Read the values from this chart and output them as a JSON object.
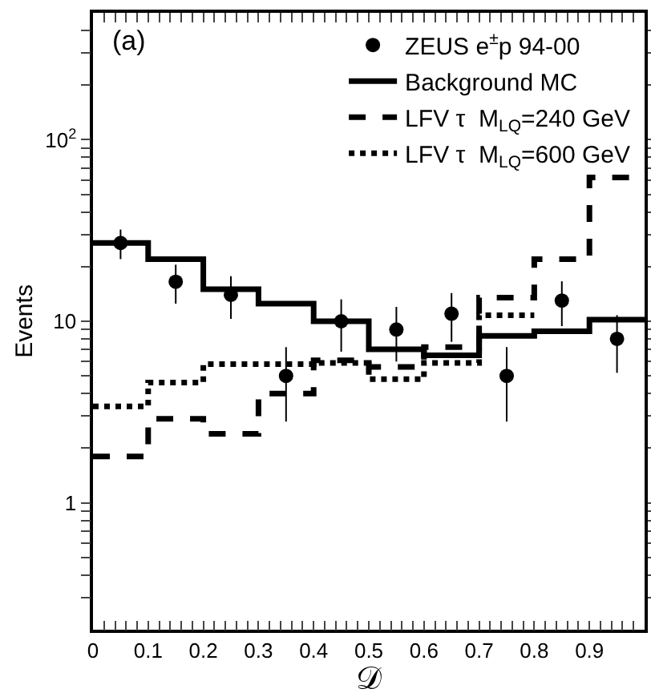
{
  "chart_data": {
    "type": "step",
    "xlabel": "𝒟",
    "ylabel": "Events",
    "annotations": [
      "(a)"
    ],
    "xlim": [
      0,
      1
    ],
    "ylim": [
      0.2,
      500
    ],
    "log": "y",
    "legend": "top right",
    "grid": false,
    "xticks": [
      0,
      0.1,
      0.2,
      0.3,
      0.4,
      0.5,
      0.6,
      0.7,
      0.8,
      0.9,
      {
        "value": 0.02,
        "label": null
      },
      {
        "value": 0.04,
        "label": null
      },
      {
        "value": 0.06,
        "label": null
      },
      {
        "value": 0.08,
        "label": null
      },
      {
        "value": 0.12,
        "label": null
      },
      {
        "value": 0.14,
        "label": null
      },
      {
        "value": 0.16,
        "label": null
      },
      {
        "value": 0.18,
        "label": null
      },
      {
        "value": 0.22,
        "label": null
      },
      {
        "value": 0.24,
        "label": null
      },
      {
        "value": 0.26,
        "label": null
      },
      {
        "value": 0.28,
        "label": null
      },
      {
        "value": 0.32,
        "label": null
      },
      {
        "value": 0.34,
        "label": null
      },
      {
        "value": 0.36,
        "label": null
      },
      {
        "value": 0.38,
        "label": null
      },
      {
        "value": 0.42,
        "label": null
      },
      {
        "value": 0.44,
        "label": null
      },
      {
        "value": 0.46,
        "label": null
      },
      {
        "value": 0.48,
        "label": null
      },
      {
        "value": 0.52,
        "label": null
      },
      {
        "value": 0.54,
        "label": null
      },
      {
        "value": 0.56,
        "label": null
      },
      {
        "value": 0.58,
        "label": null
      },
      {
        "value": 0.62,
        "label": null
      },
      {
        "value": 0.64,
        "label": null
      },
      {
        "value": 0.66,
        "label": null
      },
      {
        "value": 0.68,
        "label": null
      },
      {
        "value": 0.72,
        "label": null
      },
      {
        "value": 0.74,
        "label": null
      },
      {
        "value": 0.76,
        "label": null
      },
      {
        "value": 0.78,
        "label": null
      },
      {
        "value": 0.82,
        "label": null
      },
      {
        "value": 0.84,
        "label": null
      },
      {
        "value": 0.86,
        "label": null
      },
      {
        "value": 0.88,
        "label": null
      },
      {
        "value": 0.92,
        "label": null
      },
      {
        "value": 0.94,
        "label": null
      },
      {
        "value": 0.96,
        "label": null
      },
      {
        "value": 0.98,
        "label": null
      }
    ],
    "yticks": [
      1,
      10,
      {
        "value": 100,
        "label": "10$^{2}$"
      },
      {
        "value": 0.3,
        "label": null
      },
      {
        "value": 0.4,
        "label": null
      },
      {
        "value": 0.5,
        "label": null
      },
      {
        "value": 0.6,
        "label": null
      },
      {
        "value": 0.7,
        "label": null
      },
      {
        "value": 0.8,
        "label": null
      },
      {
        "value": 0.9,
        "label": null
      },
      {
        "value": 2,
        "label": null
      },
      {
        "value": 3,
        "label": null
      },
      {
        "value": 4,
        "label": null
      },
      {
        "value": 5,
        "label": null
      },
      {
        "value": 6,
        "label": null
      },
      {
        "value": 7,
        "label": null
      },
      {
        "value": 8,
        "label": null
      },
      {
        "value": 9,
        "label": null
      },
      {
        "value": 20,
        "label": null
      },
      {
        "value": 30,
        "label": null
      },
      {
        "value": 40,
        "label": null
      },
      {
        "value": 50,
        "label": null
      },
      {
        "value": 60,
        "label": null
      },
      {
        "value": 70,
        "label": null
      },
      {
        "value": 80,
        "label": null
      },
      {
        "value": 90,
        "label": null
      },
      {
        "value": 200,
        "label": null
      },
      {
        "value": 300,
        "label": null
      },
      {
        "value": 400,
        "label": null
      }
    ],
    "series": [
      {
        "name": "ZEUS e$^{±}$p 94-00",
        "type": "scatter",
        "marker": "circle",
        "color": "#000000",
        "x": [
          0.05,
          0.15,
          0.25,
          0.35,
          0.45,
          0.55,
          0.65,
          0.75,
          0.85,
          0.95
        ],
        "values": [
          27,
          16.5,
          14,
          5,
          10,
          9,
          11,
          5,
          13,
          8
        ],
        "errors": [
          5,
          4,
          3.7,
          2.2,
          3.2,
          3,
          3.3,
          2.2,
          3.6,
          2.8
        ]
      },
      {
        "name": "Background MC",
        "line_style": "solid",
        "color": "#000000",
        "x": [
          0,
          0.1,
          0.2,
          0.3,
          0.4,
          0.5,
          0.6,
          0.7,
          0.8,
          0.9,
          1
        ],
        "values": [
          27,
          22,
          15,
          12.5,
          10,
          7,
          6.5,
          8.3,
          8.8,
          10.2,
          10.2
        ]
      },
      {
        "name": "LFV τ  M$_{LQ}$=240 GeV",
        "line_style": "dashed",
        "color": "#000000",
        "x": [
          0,
          0.1,
          0.2,
          0.3,
          0.4,
          0.5,
          0.6,
          0.7,
          0.8,
          0.9,
          1
        ],
        "values": [
          1.8,
          2.9,
          2.4,
          4,
          6.1,
          5.6,
          7.2,
          13.5,
          22,
          62,
          62
        ]
      },
      {
        "name": "LFV τ  M$_{LQ}$=600 GeV",
        "line_style": "dotted",
        "color": "#000000",
        "x": [
          0,
          0.1,
          0.2,
          0.3,
          0.4,
          0.5,
          0.6,
          0.7,
          0.8
        ],
        "values": [
          3.4,
          4.6,
          5.8,
          5.8,
          5.9,
          4.8,
          5.9,
          10.8,
          10.8
        ]
      }
    ]
  }
}
